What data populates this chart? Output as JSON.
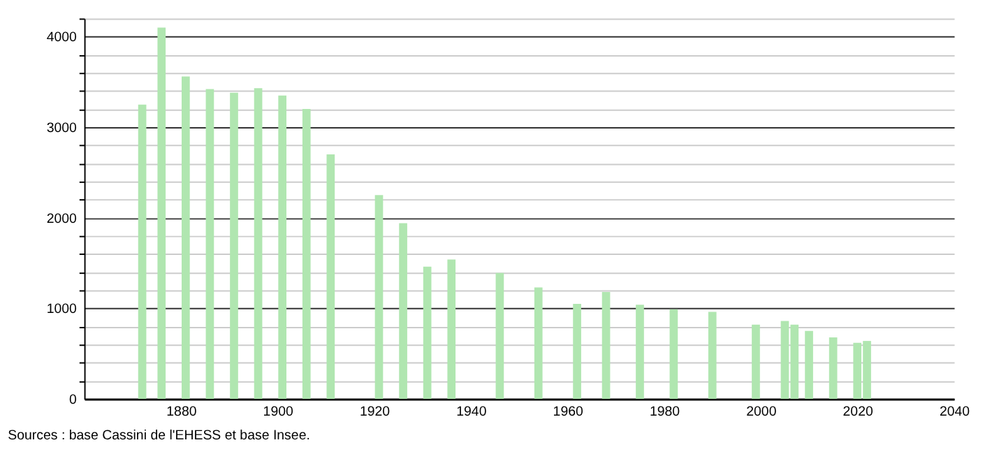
{
  "chart_data": {
    "type": "bar",
    "x": [
      1872,
      1876,
      1881,
      1886,
      1891,
      1896,
      1901,
      1906,
      1911,
      1921,
      1926,
      1931,
      1936,
      1946,
      1954,
      1962,
      1968,
      1975,
      1982,
      1990,
      1999,
      2005,
      2007,
      2010,
      2015,
      2020,
      2022
    ],
    "values": [
      3250,
      4100,
      3560,
      3420,
      3380,
      3430,
      3350,
      3200,
      2700,
      2250,
      1940,
      1460,
      1540,
      1390,
      1230,
      1050,
      1180,
      1040,
      990,
      960,
      820,
      860,
      820,
      750,
      680,
      620,
      640
    ],
    "color": "#b0e6b0",
    "xlim": [
      1860,
      2040
    ],
    "xticks": [
      1880,
      1900,
      1920,
      1940,
      1960,
      1980,
      2000,
      2020,
      2040
    ],
    "ylim": [
      0,
      4200
    ],
    "yticks": [
      0,
      {
        "value": 200,
        "label": null
      },
      {
        "value": 400,
        "label": null
      },
      {
        "value": 600,
        "label": null
      },
      {
        "value": 800,
        "label": null
      },
      1000,
      {
        "value": 1200,
        "label": null
      },
      {
        "value": 1400,
        "label": null
      },
      {
        "value": 1600,
        "label": null
      },
      {
        "value": 1800,
        "label": null
      },
      2000,
      {
        "value": 2200,
        "label": null
      },
      {
        "value": 2400,
        "label": null
      },
      {
        "value": 2600,
        "label": null
      },
      {
        "value": 2800,
        "label": null
      },
      3000,
      {
        "value": 3200,
        "label": null
      },
      {
        "value": 3400,
        "label": null
      },
      {
        "value": 3600,
        "label": null
      },
      {
        "value": 3800,
        "label": null
      },
      4000,
      {
        "value": 4200,
        "label": null
      }
    ],
    "grid": "y",
    "annotations": [
      "Sources : base Cassini de l'EHESS et base Insee."
    ]
  }
}
